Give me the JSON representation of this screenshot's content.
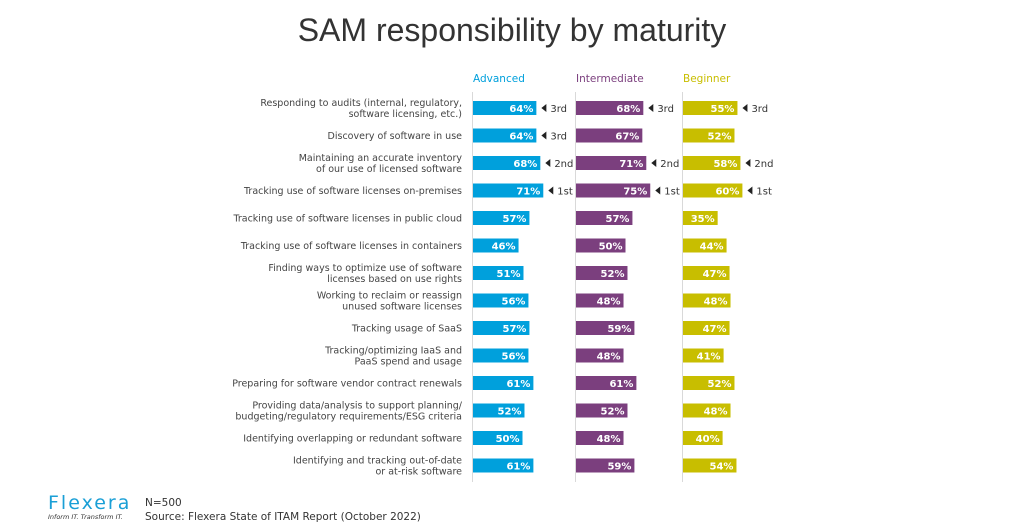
{
  "chart_data": {
    "type": "bar",
    "title": "SAM responsibility by maturity",
    "orientation": "horizontal",
    "categories": [
      "Responding to audits (internal, regulatory,|software licensing, etc.)",
      "Discovery of software in use",
      "Maintaining an accurate inventory|of our use of licensed software",
      "Tracking use of software licenses on-premises",
      "Tracking use of software licenses in public cloud",
      "Tracking use of software licenses in containers",
      "Finding ways to optimize use of software|licenses based on use rights",
      "Working to reclaim or reassign|unused software licenses",
      "Tracking usage of SaaS",
      "Tracking/optimizing IaaS and|PaaS spend and usage",
      "Preparing for software vendor contract renewals",
      "Providing data/analysis to support planning/|budgeting/regulatory requirements/ESG criteria",
      "Identifying overlapping or redundant software",
      "Identifying and tracking out-of-date|or at-risk software"
    ],
    "series": [
      {
        "name": "Advanced",
        "color": "#00a0dc",
        "values": [
          64,
          64,
          68,
          71,
          57,
          46,
          51,
          56,
          57,
          56,
          61,
          52,
          50,
          61
        ],
        "ranks": [
          "3rd",
          "3rd",
          "2nd",
          "1st",
          "",
          "",
          "",
          "",
          "",
          "",
          "",
          "",
          "",
          ""
        ]
      },
      {
        "name": "Intermediate",
        "color": "#7b3f7e",
        "values": [
          68,
          67,
          71,
          75,
          57,
          50,
          52,
          48,
          59,
          48,
          61,
          52,
          48,
          59
        ],
        "ranks": [
          "3rd",
          "",
          "2nd",
          "1st",
          "",
          "",
          "",
          "",
          "",
          "",
          "",
          "",
          "",
          ""
        ]
      },
      {
        "name": "Beginner",
        "color": "#c8be00",
        "values": [
          55,
          52,
          58,
          60,
          35,
          44,
          47,
          48,
          47,
          41,
          52,
          48,
          40,
          54
        ],
        "ranks": [
          "3rd",
          "",
          "2nd",
          "1st",
          "",
          "",
          "",
          "",
          "",
          "",
          "",
          "",
          "",
          ""
        ]
      }
    ],
    "unit": "%",
    "xlim": [
      0,
      100
    ],
    "grid": false,
    "legend": "column headers"
  },
  "footer": {
    "n": "N=500",
    "source": "Source: Flexera State of ITAM Report (October 2022)"
  },
  "logo": {
    "word": "FLEXERA",
    "tagline": "Inform IT. Transform IT."
  }
}
